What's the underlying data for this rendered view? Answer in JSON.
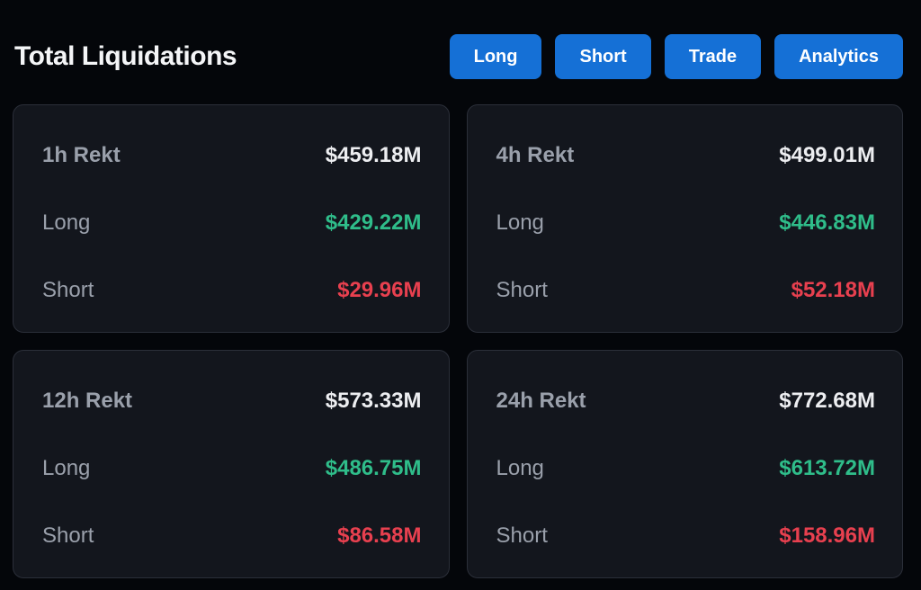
{
  "header": {
    "title": "Total Liquidations"
  },
  "toolbar": {
    "buttons": [
      {
        "label": "Long"
      },
      {
        "label": "Short"
      },
      {
        "label": "Trade"
      },
      {
        "label": "Analytics"
      }
    ]
  },
  "cards": [
    {
      "period_label": "1h Rekt",
      "total_value": "$459.18M",
      "long_label": "Long",
      "long_value": "$429.22M",
      "short_label": "Short",
      "short_value": "$29.96M"
    },
    {
      "period_label": "4h Rekt",
      "total_value": "$499.01M",
      "long_label": "Long",
      "long_value": "$446.83M",
      "short_label": "Short",
      "short_value": "$52.18M"
    },
    {
      "period_label": "12h Rekt",
      "total_value": "$573.33M",
      "long_label": "Long",
      "long_value": "$486.75M",
      "short_label": "Short",
      "short_value": "$86.58M"
    },
    {
      "period_label": "24h Rekt",
      "total_value": "$772.68M",
      "long_label": "Long",
      "long_value": "$613.72M",
      "short_label": "Short",
      "short_value": "$158.96M"
    }
  ],
  "colors": {
    "accent_blue": "#1570d6",
    "long_green": "#2fbd8a",
    "short_red": "#e8404f",
    "page_bg": "#04060a",
    "card_bg": "#13161d",
    "card_border": "#2b2f39",
    "label_gray": "#9aa0ab",
    "value_white": "#edeef1"
  }
}
